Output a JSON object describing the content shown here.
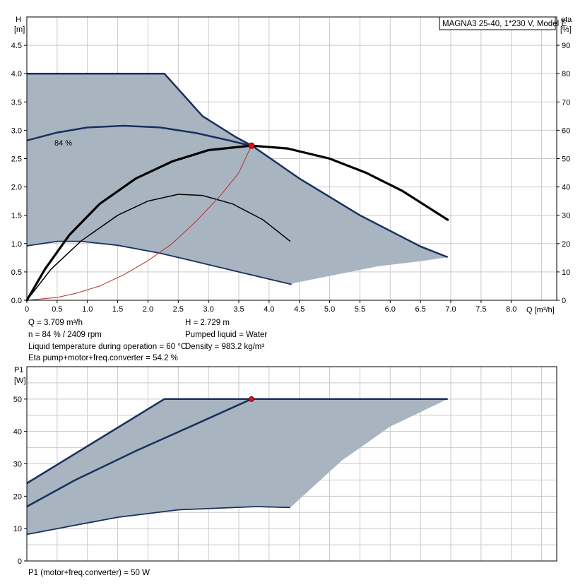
{
  "model_label": "MAGNA3 25-40, 1*230 V, Model E",
  "colors": {
    "envelope_fill": "#a9b4c1",
    "envelope_edge": "#17305e",
    "pump_curve": "#000000",
    "system_curve": "#b03030",
    "operating_point": "#e01010"
  },
  "head_chart": {
    "y_label": [
      "H",
      "[m]"
    ],
    "y2_label": [
      "eta",
      "[%]"
    ],
    "x_label": "Q [m³/h]",
    "x_ticks": [
      "0",
      "0.5",
      "1.0",
      "1.5",
      "2.0",
      "2.5",
      "3.0",
      "3.5",
      "4.0",
      "4.5",
      "5.0",
      "5.5",
      "6.0",
      "6.5",
      "7.0",
      "7.5",
      "8.0"
    ],
    "y_ticks": [
      "0.0",
      "0.5",
      "1.0",
      "1.5",
      "2.0",
      "2.5",
      "3.0",
      "3.5",
      "4.0",
      "4.5"
    ],
    "y2_ticks": [
      "0",
      "10",
      "20",
      "30",
      "40",
      "50",
      "60",
      "70",
      "80",
      "90"
    ],
    "efficiency_label": "84 %"
  },
  "info": {
    "left": [
      "Q = 3.709 m³/h",
      "n = 84 % / 2409 rpm",
      "Liquid temperature during operation = 60 °C",
      "Eta pump+motor+freq.converter = 54.2 %"
    ],
    "right": [
      "H = 2.729 m",
      "Pumped liquid = Water",
      "Density = 983.2 kg/m³"
    ]
  },
  "power_chart": {
    "y_label": [
      "P1",
      "[W]"
    ],
    "y_ticks": [
      "0",
      "10",
      "20",
      "30",
      "40",
      "50"
    ],
    "footer": "P1 (motor+freq.converter) = 50 W"
  },
  "chart_data": [
    {
      "type": "line",
      "name": "head",
      "xlim": [
        0,
        8.75
      ],
      "ylim": [
        0,
        5.0
      ],
      "y2lim": [
        0,
        100
      ],
      "grid": true,
      "envelope": [
        [
          0,
          4.0
        ],
        [
          2.27,
          4.0
        ],
        [
          2.9,
          3.25
        ],
        [
          3.45,
          2.88
        ],
        [
          3.73,
          2.72
        ],
        [
          4.5,
          2.15
        ],
        [
          5.5,
          1.5
        ],
        [
          6.5,
          0.95
        ],
        [
          6.95,
          0.76
        ],
        [
          6.5,
          0.69
        ],
        [
          5.8,
          0.6
        ],
        [
          5.0,
          0.43
        ],
        [
          4.4,
          0.3
        ],
        [
          4.37,
          0.28
        ],
        [
          3.5,
          0.5
        ],
        [
          2.8,
          0.68
        ],
        [
          2.2,
          0.83
        ],
        [
          1.5,
          0.97
        ],
        [
          0.9,
          1.04
        ],
        [
          0.5,
          1.04
        ],
        [
          0,
          0.96
        ]
      ],
      "max_curve": [
        [
          0,
          4.0
        ],
        [
          2.27,
          4.0
        ],
        [
          2.9,
          3.25
        ],
        [
          3.45,
          2.88
        ],
        [
          3.73,
          2.72
        ],
        [
          4.5,
          2.15
        ],
        [
          5.5,
          1.5
        ],
        [
          6.5,
          0.95
        ],
        [
          6.95,
          0.76
        ]
      ],
      "min_curve": [
        [
          0,
          0.96
        ],
        [
          0.5,
          1.04
        ],
        [
          0.9,
          1.04
        ],
        [
          1.5,
          0.97
        ],
        [
          2.2,
          0.83
        ],
        [
          2.8,
          0.68
        ],
        [
          3.5,
          0.5
        ],
        [
          4.37,
          0.28
        ]
      ],
      "curve_84": [
        [
          0,
          2.82
        ],
        [
          0.5,
          2.96
        ],
        [
          1.0,
          3.05
        ],
        [
          1.6,
          3.08
        ],
        [
          2.2,
          3.05
        ],
        [
          2.8,
          2.95
        ],
        [
          3.3,
          2.83
        ],
        [
          3.73,
          2.72
        ]
      ],
      "pump_curve": [
        [
          0,
          0
        ],
        [
          0.3,
          0.55
        ],
        [
          0.7,
          1.15
        ],
        [
          1.2,
          1.7
        ],
        [
          1.8,
          2.15
        ],
        [
          2.4,
          2.45
        ],
        [
          3.0,
          2.65
        ],
        [
          3.7,
          2.73
        ],
        [
          4.3,
          2.68
        ],
        [
          5.0,
          2.5
        ],
        [
          5.6,
          2.25
        ],
        [
          6.2,
          1.93
        ],
        [
          6.95,
          1.42
        ]
      ],
      "eta_curve": [
        [
          0,
          0
        ],
        [
          0.4,
          0.55
        ],
        [
          0.9,
          1.05
        ],
        [
          1.5,
          1.5
        ],
        [
          2.0,
          1.75
        ],
        [
          2.5,
          1.87
        ],
        [
          2.9,
          1.85
        ],
        [
          3.4,
          1.7
        ],
        [
          3.9,
          1.42
        ],
        [
          4.35,
          1.04
        ]
      ],
      "system_curve": [
        [
          0,
          0
        ],
        [
          0.5,
          0.05
        ],
        [
          0.8,
          0.12
        ],
        [
          1.2,
          0.25
        ],
        [
          1.6,
          0.45
        ],
        [
          2.0,
          0.7
        ],
        [
          2.4,
          1.0
        ],
        [
          2.8,
          1.4
        ],
        [
          3.2,
          1.85
        ],
        [
          3.5,
          2.25
        ],
        [
          3.709,
          2.729
        ]
      ],
      "operating_point": {
        "x": 3.709,
        "y": 2.729
      }
    },
    {
      "type": "line",
      "name": "power",
      "xlim": [
        0,
        8.75
      ],
      "ylim": [
        0,
        60
      ],
      "grid": true,
      "envelope": [
        [
          0,
          24
        ],
        [
          2.27,
          50
        ],
        [
          6.95,
          50
        ],
        [
          6.0,
          41.5
        ],
        [
          5.2,
          31
        ],
        [
          4.35,
          16.5
        ],
        [
          3.8,
          16.8
        ],
        [
          2.5,
          15.8
        ],
        [
          1.5,
          13.5
        ],
        [
          0.5,
          10
        ],
        [
          0,
          8.2
        ]
      ],
      "max_curve": [
        [
          0,
          24
        ],
        [
          2.27,
          50
        ],
        [
          6.95,
          50
        ]
      ],
      "min_curve": [
        [
          0,
          8.2
        ],
        [
          0.5,
          10
        ],
        [
          1.5,
          13.5
        ],
        [
          2.5,
          15.8
        ],
        [
          3.8,
          16.8
        ],
        [
          4.35,
          16.5
        ]
      ],
      "operating_curve": [
        [
          0,
          16.8
        ],
        [
          0.8,
          25
        ],
        [
          1.8,
          34
        ],
        [
          2.7,
          41.5
        ],
        [
          3.709,
          50
        ]
      ],
      "operating_point": {
        "x": 3.709,
        "y": 50
      }
    }
  ]
}
